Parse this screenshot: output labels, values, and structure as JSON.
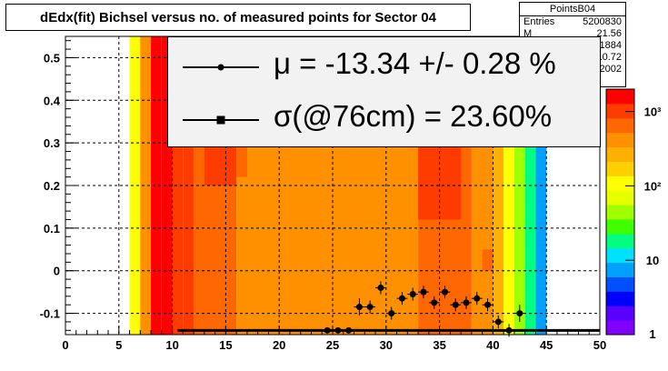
{
  "title": "dEdx(fit) Bichsel versus no. of measured points for Sector 04",
  "stats": {
    "name": "PointsB04",
    "rows": [
      {
        "label": "Entries",
        "value": "5200830"
      },
      {
        "label": "M",
        "value": "21.56"
      },
      {
        "label": "",
        "value": "0.1884"
      },
      {
        "label": "",
        "value": "10.72"
      },
      {
        "label": "",
        "value": "0.2002"
      }
    ]
  },
  "legend": {
    "mu_text": "μ  = -13.34 +/-  0.28 %",
    "sigma_text": "σ(@76cm) = 23.60%"
  },
  "colors": {
    "heat": [
      "#7f00ff",
      "#5a00ff",
      "#0000ff",
      "#0050ff",
      "#00a0ff",
      "#00e0ff",
      "#00ff80",
      "#40ff00",
      "#a0ff00",
      "#e8ff00",
      "#ffff00",
      "#ffd000",
      "#ffb000",
      "#ff9000",
      "#ff6800",
      "#ff3c00",
      "#ff0000"
    ]
  },
  "chart_data": {
    "type": "heatmap",
    "title": "dEdx(fit) Bichsel versus no. of measured points for Sector 04",
    "xlim": [
      0,
      50
    ],
    "ylim": [
      -0.15,
      0.55
    ],
    "xticks": [
      "0",
      "5",
      "10",
      "15",
      "20",
      "25",
      "30",
      "35",
      "40",
      "45",
      "50"
    ],
    "yticks": [
      "-0.1",
      "0",
      "0.1",
      "0.2",
      "0.3",
      "0.4",
      "0.5"
    ],
    "grid": true,
    "colorbar": {
      "scale": "log",
      "range": [
        1,
        2000
      ],
      "ticks": [
        "1",
        "10",
        "10²",
        "10³"
      ]
    },
    "columns": [
      {
        "x0": 6,
        "x1": 7,
        "level": 10
      },
      {
        "x0": 7,
        "x1": 8,
        "level": 13
      },
      {
        "x0": 8,
        "x1": 9,
        "level": 16
      },
      {
        "x0": 9,
        "x1": 10,
        "level": 16
      },
      {
        "x0": 10,
        "x1": 11,
        "level": 15
      },
      {
        "x0": 11,
        "x1": 12,
        "level": 15
      },
      {
        "x0": 12,
        "x1": 16,
        "level": 14
      },
      {
        "x0": 16,
        "x1": 33,
        "level": 13
      },
      {
        "x0": 33,
        "x1": 38,
        "level": 14
      },
      {
        "x0": 38,
        "x1": 40,
        "level": 13
      },
      {
        "x0": 40,
        "x1": 41,
        "level": 12
      },
      {
        "x0": 41,
        "x1": 42,
        "level": 10
      },
      {
        "x0": 42,
        "x1": 43,
        "level": 8
      },
      {
        "x0": 43,
        "x1": 44,
        "level": 6
      },
      {
        "x0": 44,
        "x1": 45,
        "level": 4
      }
    ],
    "series": [
      {
        "name": "μ",
        "x": [
          24.5,
          25.5,
          26.5,
          27.5,
          28.5,
          29.5,
          30.5,
          31.5,
          32.5,
          33.5,
          34.5,
          35.5,
          36.5,
          37.5,
          38.5,
          39.5,
          40.5,
          41.5,
          42.5
        ],
        "y": [
          -0.14,
          -0.14,
          -0.14,
          -0.085,
          -0.085,
          -0.04,
          -0.1,
          -0.065,
          -0.055,
          -0.05,
          -0.075,
          -0.05,
          -0.08,
          -0.075,
          -0.065,
          -0.08,
          -0.12,
          -0.14,
          -0.1
        ],
        "yerr": [
          0.005,
          0.005,
          0.005,
          0.02,
          0.015,
          0.015,
          0.015,
          0.015,
          0.015,
          0.015,
          0.015,
          0.015,
          0.015,
          0.015,
          0.015,
          0.015,
          0.015,
          0.015,
          0.02
        ]
      },
      {
        "name": "σ",
        "x": [
          10.5,
          50
        ],
        "y": [
          -0.14,
          -0.14
        ]
      }
    ]
  }
}
